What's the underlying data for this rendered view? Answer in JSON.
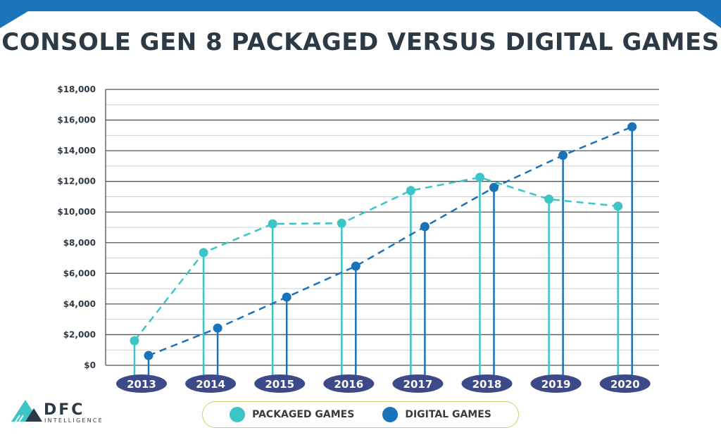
{
  "title": "CONSOLE GEN 8 PACKAGED VERSUS DIGITAL GAMES",
  "colors": {
    "banner": "#1b75bb",
    "packaged": "#3cc4c7",
    "digital": "#1a72b9",
    "year_pill": "#3d4a8a",
    "legend_border": "#b8d66e",
    "title": "#2d3a45"
  },
  "logo": {
    "text": "DFC",
    "subtext": "INTELLIGENCE"
  },
  "chart_data": {
    "type": "line",
    "title": "CONSOLE GEN 8 PACKAGED VERSUS DIGITAL GAMES",
    "categories": [
      "2013",
      "2014",
      "2015",
      "2016",
      "2017",
      "2018",
      "2019",
      "2020"
    ],
    "series": [
      {
        "name": "PACKAGED GAMES",
        "values": [
          1600,
          7350,
          9230,
          9270,
          11400,
          12260,
          10840,
          10380
        ],
        "color": "#3cc4c7",
        "style": "lollipop with dashed connecting line"
      },
      {
        "name": "DIGITAL GAMES",
        "values": [
          640,
          2430,
          4450,
          6470,
          9050,
          11600,
          13700,
          15560
        ],
        "color": "#1a72b9",
        "style": "lollipop with dashed connecting line"
      }
    ],
    "ylim": [
      0,
      18000
    ],
    "yticks": [
      "$0",
      "$2,000",
      "$4,000",
      "$6,000",
      "$8,000",
      "$10,000",
      "$12,000",
      "$14,000",
      "$16,000",
      "$18,000"
    ],
    "ytick_values": [
      0,
      2000,
      4000,
      6000,
      8000,
      10000,
      12000,
      14000,
      16000,
      18000
    ],
    "grid": true,
    "legend": "bottom-center"
  }
}
